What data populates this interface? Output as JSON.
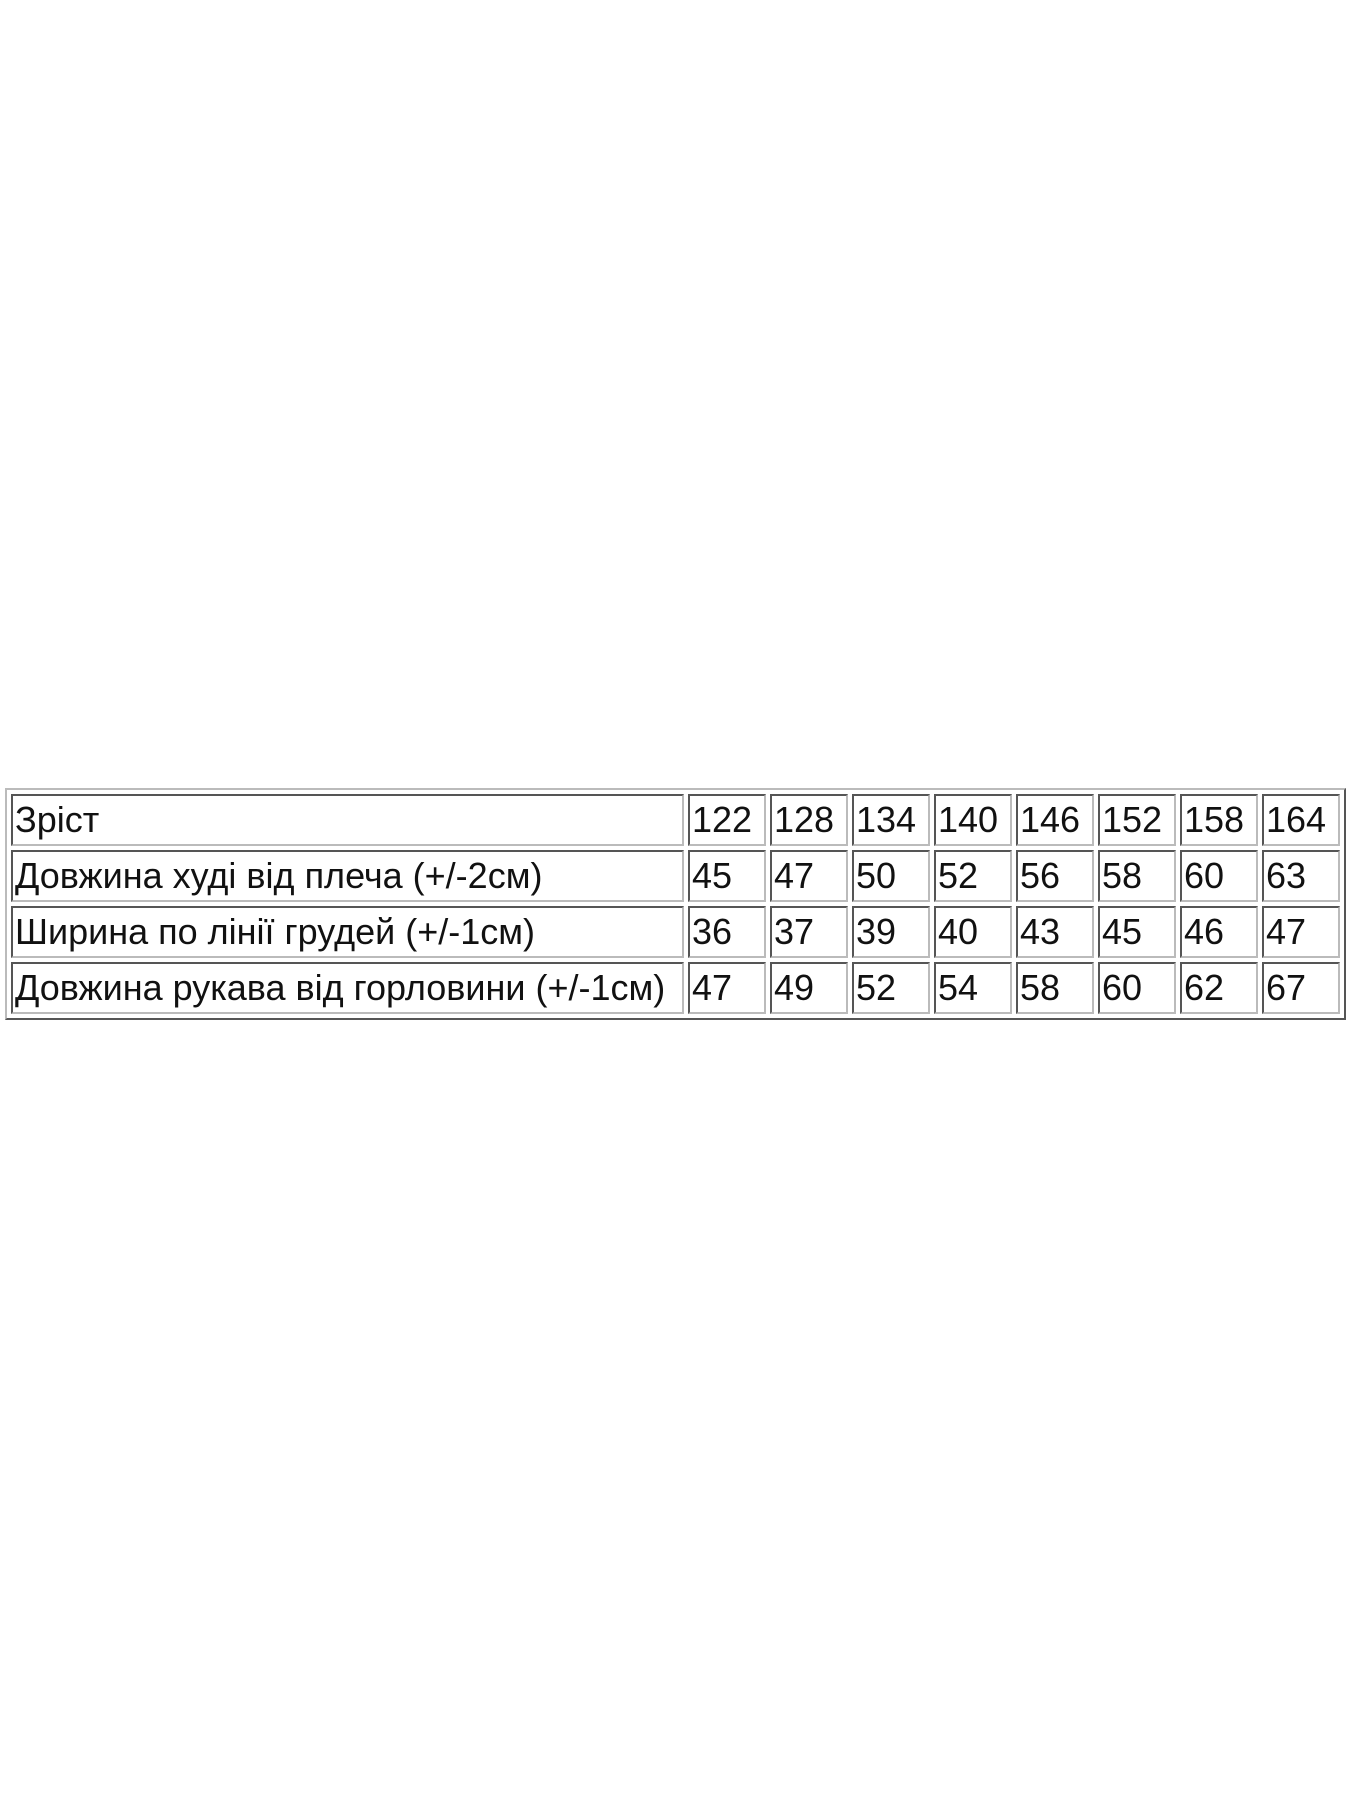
{
  "size_table": {
    "rows": [
      {
        "label": "Зріст",
        "values": [
          "122",
          "128",
          "134",
          "140",
          "146",
          "152",
          "158",
          "164"
        ]
      },
      {
        "label": "Довжина худі від плеча (+/-2см)",
        "values": [
          "45",
          "47",
          "50",
          "52",
          "56",
          "58",
          "60",
          "63"
        ]
      },
      {
        "label": "Ширина по лінії грудей (+/-1см)",
        "values": [
          "36",
          "37",
          "39",
          "40",
          "43",
          "45",
          "46",
          "47"
        ]
      },
      {
        "label": "Довжина рукава від горловини (+/-1см)",
        "values": [
          "47",
          "49",
          "52",
          "54",
          "58",
          "60",
          "62",
          "67"
        ]
      }
    ]
  }
}
